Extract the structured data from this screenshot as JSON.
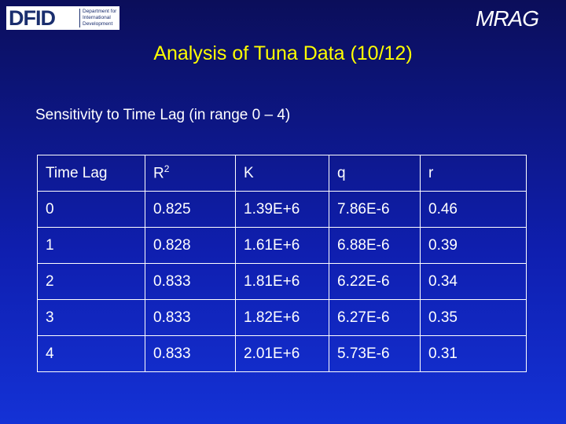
{
  "logos": {
    "left": {
      "abbr": "DFID",
      "lines": [
        "Department for",
        "International",
        "Development"
      ]
    },
    "right": "MRAG"
  },
  "title": "Analysis of Tuna Data (10/12)",
  "subtitle": "Sensitivity to Time Lag (in range 0 – 4)",
  "table": {
    "header": [
      "Time Lag",
      {
        "base": "R",
        "sup": "2"
      },
      "K",
      "q",
      "r"
    ],
    "rows": [
      [
        "0",
        "0.825",
        "1.39E+6",
        "7.86E-6",
        "0.46"
      ],
      [
        "1",
        "0.828",
        "1.61E+6",
        "6.88E-6",
        "0.39"
      ],
      [
        "2",
        "0.833",
        "1.81E+6",
        "6.22E-6",
        "0.34"
      ],
      [
        "3",
        "0.833",
        "1.82E+6",
        "6.27E-6",
        "0.35"
      ],
      [
        "4",
        "0.833",
        "2.01E+6",
        "5.73E-6",
        "0.31"
      ]
    ]
  }
}
